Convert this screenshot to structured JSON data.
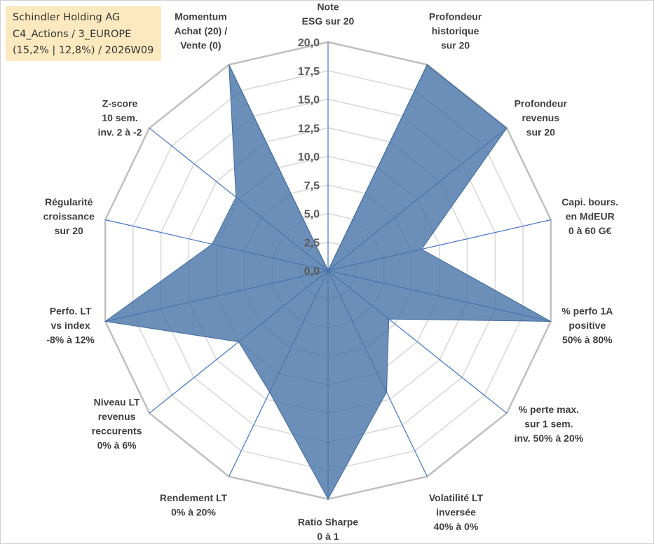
{
  "info": {
    "company": "Schindler Holding AG",
    "portfolio": "C4_Actions / 3_EUROPE",
    "stats": "(15,2% | 12,8%) / 2026W09"
  },
  "chart_data": {
    "type": "radar",
    "title": "",
    "rmin": 0,
    "rmax": 20,
    "tick_step": 2.5,
    "tick_labels": [
      "0,0",
      "2,5",
      "5,0",
      "7,5",
      "10,0",
      "12,5",
      "15,0",
      "17,5",
      "20,0"
    ],
    "categories": [
      [
        "Note",
        "ESG sur 20"
      ],
      [
        "Profondeur",
        "historique",
        "sur 20"
      ],
      [
        "Profondeur",
        "revenus",
        "sur 20"
      ],
      [
        "Capi. bours.",
        "en MdEUR",
        "0 à 60 G€"
      ],
      [
        "% perfo 1A",
        "positive",
        "50% à 80%"
      ],
      [
        "% perte max.",
        "sur 1 sem.",
        "inv. 50% à 20%"
      ],
      [
        "Volatilité LT",
        "inversée",
        "40% à 0%"
      ],
      [
        "Ratio Sharpe",
        "0 à 1"
      ],
      [
        "Rendement LT",
        "0% à 20%"
      ],
      [
        "Niveau LT",
        "revenus",
        "reccurents",
        "0% à 6%"
      ],
      [
        "Perfo. LT",
        "vs index",
        "-8% à 12%"
      ],
      [
        "Régularité",
        "croissance",
        "sur 20"
      ],
      [
        "Z-score",
        "10 sem.",
        "inv. 2 à -2"
      ],
      [
        "Momentum",
        "Achat (20) /",
        "Vente (0)"
      ]
    ],
    "series": [
      {
        "name": "Schindler Holding AG",
        "values": [
          0,
          20,
          20,
          8.4,
          20,
          6.8,
          11.8,
          20,
          11.8,
          10,
          20,
          10.4,
          10.3,
          20
        ],
        "color": "#4a76a8"
      }
    ]
  }
}
